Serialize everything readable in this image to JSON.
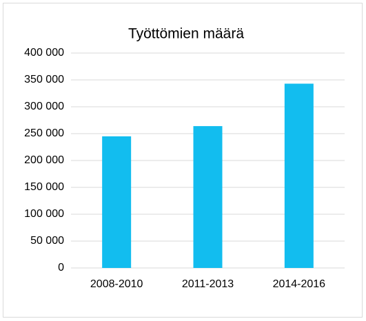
{
  "chart_data": {
    "type": "bar",
    "title": "Työttömien määrä",
    "categories": [
      "2008-2010",
      "2011-2013",
      "2014-2016"
    ],
    "values": [
      245000,
      264000,
      343000
    ],
    "color": "#12bdef",
    "ylim": [
      0,
      400000
    ],
    "yticks": [
      0,
      {
        "value": 50000,
        "label": "50 000"
      },
      {
        "value": 100000,
        "label": "100 000"
      },
      {
        "value": 150000,
        "label": "150 000"
      },
      {
        "value": 200000,
        "label": "200 000"
      },
      {
        "value": 250000,
        "label": "250 000"
      },
      {
        "value": 300000,
        "label": "300 000"
      },
      {
        "value": 350000,
        "label": "350 000"
      },
      {
        "value": 400000,
        "label": "400 000"
      }
    ],
    "grid": true
  }
}
